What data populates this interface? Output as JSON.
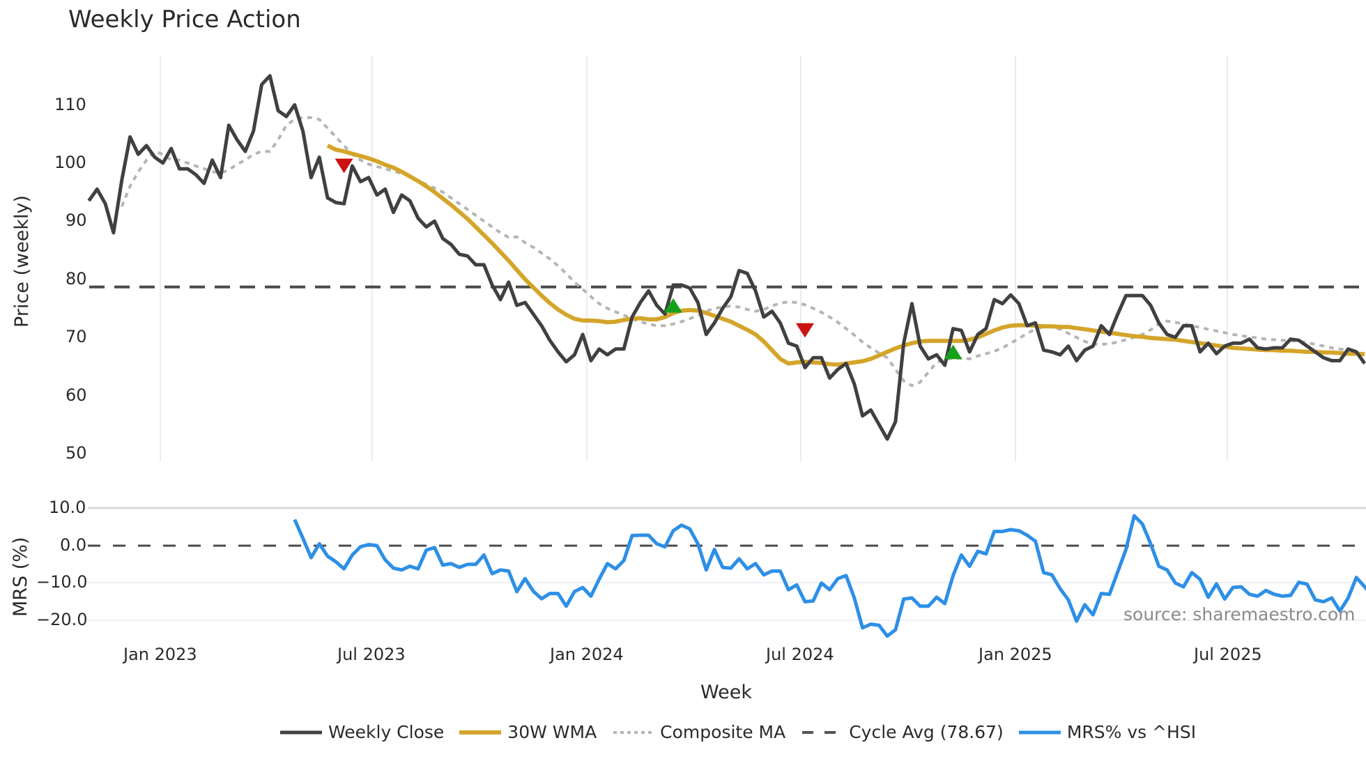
{
  "chart": {
    "title": "Weekly Price Action",
    "price_axis_label": "Price (weekly)",
    "mrs_axis_label": "MRS (%)",
    "x_axis_label": "Week",
    "source": "source: sharemaestro.com",
    "price_ticks": [
      "110",
      "100",
      "90",
      "80",
      "70",
      "60",
      "50"
    ],
    "mrs_ticks": [
      "10.0",
      "0.0",
      "−10.0",
      "−20.0"
    ],
    "x_ticks": [
      "Jan 2023",
      "Jul 2023",
      "Jan 2024",
      "Jul 2024",
      "Jan 2025",
      "Jul 2025"
    ],
    "colors": {
      "close": "#404040",
      "wma": "#d4a52a",
      "composite": "#b5b5b5",
      "cycle": "#4a4a4a",
      "mrs": "#2e8fe6",
      "sell_marker": "#cc1111",
      "buy_marker": "#15a21b",
      "grid": "#e8ecf2"
    }
  },
  "legend": {
    "close": "Weekly Close",
    "wma": "30W WMA",
    "composite": "Composite MA",
    "cycle": "Cycle Avg (78.67)",
    "mrs": "MRS% vs ^HSI"
  },
  "chart_data": {
    "type": "line",
    "title": "Weekly Price Action",
    "xlabel": "Week",
    "ylabel": "Price (weekly)",
    "ylim": [
      49,
      117
    ],
    "x_start": "Oct 2022",
    "x_end": "Oct 2025",
    "x_ticks": [
      "Jan 2023",
      "Jul 2023",
      "Jan 2024",
      "Jul 2024",
      "Jan 2025",
      "Jul 2025"
    ],
    "grid": true,
    "legend_position": "bottom",
    "series": [
      {
        "name": "Weekly Close",
        "start_index": 0,
        "values": [
          93.5,
          95.5,
          93,
          88,
          97,
          104.5,
          101.5,
          103,
          101,
          100,
          102.5,
          99,
          99,
          98,
          96.5,
          100.5,
          97.5,
          106.5,
          104,
          102,
          105.5,
          113.5,
          115,
          109,
          108,
          110,
          105.5,
          97.5,
          101,
          94,
          93.2,
          93,
          99.5,
          96.8,
          97.5,
          94.5,
          95.5,
          91.5,
          94.5,
          93.5,
          90.5,
          89,
          90,
          87,
          86,
          84.3,
          84,
          82.5,
          82.5,
          79,
          76.5,
          79.5,
          75.5,
          76,
          74,
          72,
          69.5,
          67.5,
          65.8,
          67,
          70.5,
          66,
          68,
          67,
          68,
          68,
          73.5,
          76,
          78,
          75.5,
          74,
          79,
          79,
          78.5,
          76,
          70.5,
          72.5,
          75,
          77,
          81.5,
          81,
          78,
          73.5,
          74.5,
          72.5,
          69,
          68.5,
          64.8,
          66.5,
          66.5,
          63,
          64.5,
          65.5,
          62,
          56.5,
          57.5,
          55,
          52.5,
          55.5,
          69,
          75.8,
          68.5,
          66.3,
          67,
          65.2,
          71.5,
          71.2,
          67.5,
          70.5,
          71.5,
          76.5,
          75.8,
          77.3,
          75.8,
          72,
          72.5,
          67.8,
          67.5,
          67,
          68.5,
          66,
          67.8,
          68.5,
          72,
          70.5,
          74,
          77.2,
          77.2,
          77.2,
          75.5,
          72.5,
          70.5,
          70,
          72,
          72,
          67.5,
          69,
          67.2,
          68.5,
          69,
          69,
          69.7,
          68.2,
          68,
          68.2,
          68.2,
          69.7,
          69.5,
          68.5,
          67.5,
          66.5,
          66,
          66,
          68,
          67.5,
          65.5
        ]
      },
      {
        "name": "30W WMA",
        "start_index": 29,
        "values": [
          103,
          102.3,
          102,
          101.6,
          101.2,
          100.8,
          100.3,
          99.7,
          99.2,
          98.5,
          97.7,
          96.9,
          96,
          95,
          93.9,
          92.8,
          91.6,
          90.4,
          89,
          87.6,
          86.2,
          84.7,
          83.2,
          81.6,
          80,
          78.6,
          77.2,
          75.9,
          74.8,
          73.9,
          73.2,
          72.9,
          72.9,
          72.8,
          72.6,
          72.7,
          73,
          73.2,
          73.3,
          73.1,
          73.1,
          73.5,
          74.2,
          74.6,
          74.7,
          74.6,
          74.2,
          73.7,
          73.2,
          72.7,
          72,
          71.3,
          70.5,
          69.3,
          67.8,
          66.3,
          65.5,
          65.7,
          65.8,
          65.7,
          65.6,
          65.4,
          65.3,
          65.5,
          65.7,
          65.9,
          66.3,
          66.9,
          67.5,
          68.1,
          68.6,
          69,
          69.3,
          69.4,
          69.4,
          69.4,
          69.4,
          69.4,
          69.6,
          70,
          70.6,
          71.2,
          71.7,
          72,
          72.1,
          72.1,
          72,
          71.9,
          71.9,
          71.8,
          71.8,
          71.6,
          71.4,
          71.2,
          71,
          70.8,
          70.6,
          70.4,
          70.2,
          70.1,
          69.9,
          69.8,
          69.7,
          69.6,
          69.4,
          69.2,
          69,
          68.8,
          68.6,
          68.4,
          68.2,
          68.1,
          68,
          67.9,
          67.8,
          67.8,
          67.7,
          67.7,
          67.6,
          67.5,
          67.5,
          67.4,
          67.4,
          67.3,
          67.2,
          67.2,
          67.1
        ]
      },
      {
        "name": "Composite MA",
        "start_index": 4,
        "values": [
          92.5,
          96,
          98.5,
          100.5,
          102,
          101.5,
          100.5,
          100.5,
          100,
          99.5,
          99,
          98.5,
          98.3,
          98.8,
          99.8,
          100.5,
          101.5,
          102,
          102,
          104,
          106.5,
          107.5,
          107.8,
          107.8,
          107.5,
          106,
          104.5,
          103,
          101.5,
          100.5,
          99.8,
          99.4,
          99,
          98.6,
          98.2,
          97.7,
          97,
          96.3,
          95.7,
          95,
          94,
          93,
          92,
          91,
          90,
          89,
          88,
          87.2,
          87.3,
          86.3,
          85.5,
          84.5,
          83.5,
          82.3,
          81,
          79.5,
          78.3,
          77,
          75.8,
          75,
          74.4,
          73.8,
          73.2,
          72.7,
          72.3,
          72,
          72,
          72.3,
          72.7,
          73.2,
          73.8,
          74.5,
          75,
          75.2,
          75.4,
          75.2,
          74.8,
          74.5,
          74.8,
          75.4,
          75.9,
          76.1,
          76,
          75.6,
          75,
          74.3,
          73.5,
          72.6,
          71.5,
          70.4,
          69.2,
          68.2,
          67.3,
          66.5,
          64.5,
          62.5,
          61.7,
          62.3,
          64,
          65.7,
          66.2,
          66.4,
          66.4,
          66.3,
          66.8,
          67.2,
          67.6,
          68.2,
          69,
          69.8,
          70.7,
          71.4,
          71.8,
          71.8,
          71.4,
          70.7,
          70,
          69.3,
          68.8,
          68.8,
          68.9,
          69.2,
          69.6,
          70,
          70.5,
          71.3,
          72.3,
          72.8,
          72.6,
          72.3,
          72,
          71.7,
          71.4,
          71.1,
          70.8,
          70.5,
          70.3,
          70.1,
          69.9,
          69.7,
          69.6,
          69.5,
          69.4,
          69.3,
          69.1,
          68.8,
          68.5,
          68.2,
          68,
          67.8
        ]
      },
      {
        "name": "Cycle Avg (78.67)",
        "constant": 78.67
      },
      {
        "name": "MRS% vs ^HSI",
        "axis": "MRS (%)",
        "ylim": [
          -26,
          12
        ],
        "start_index": 25,
        "values": [
          7,
          2,
          -3.2,
          0.5,
          -2.8,
          -4.3,
          -6.2,
          -2.5,
          -0.3,
          0.3,
          0,
          -3.8,
          -6,
          -6.5,
          -5.5,
          -6.2,
          -1.2,
          -0.5,
          -5.2,
          -4.8,
          -5.8,
          -5,
          -5,
          -2.5,
          -7.5,
          -6.5,
          -6.8,
          -12.3,
          -8.8,
          -12.2,
          -14.2,
          -12.8,
          -12.8,
          -16.2,
          -12.3,
          -11.2,
          -13.5,
          -9,
          -4.8,
          -6.2,
          -4,
          2.7,
          2.8,
          2.8,
          0.5,
          -0.3,
          4,
          5.5,
          4.5,
          0.5,
          -6.5,
          -1,
          -5.8,
          -6,
          -3.5,
          -6.2,
          -4.8,
          -7.8,
          -6.8,
          -6.8,
          -11.8,
          -10.5,
          -15,
          -14.8,
          -10,
          -11.8,
          -8.8,
          -8,
          -14,
          -22,
          -21,
          -21.3,
          -24.2,
          -22.5,
          -14.3,
          -14,
          -16.2,
          -16.2,
          -13.8,
          -15.5,
          -8,
          -2.5,
          -5.5,
          -1.5,
          -2.2,
          3.8,
          3.8,
          4.3,
          4,
          2.8,
          1.2,
          -7.2,
          -7.8,
          -11.5,
          -14.5,
          -20.2,
          -15.8,
          -18.5,
          -12.8,
          -13,
          -7,
          -1,
          8,
          5.8,
          0.5,
          -5.5,
          -6.5,
          -10,
          -11,
          -7.2,
          -9,
          -13.8,
          -10.2,
          -14.3,
          -11.2,
          -11,
          -13,
          -13.5,
          -12,
          -13,
          -13.5,
          -13.3,
          -9.8,
          -10.3,
          -14.5,
          -15,
          -14,
          -17.5,
          -14,
          -8.5,
          -11,
          -13.5
        ]
      }
    ],
    "markers": [
      {
        "type": "sell",
        "shape": "triangle-down",
        "index": 31,
        "price": 99.5
      },
      {
        "type": "buy",
        "shape": "triangle-up",
        "index": 71,
        "price": 75.5
      },
      {
        "type": "sell",
        "shape": "triangle-down",
        "index": 87,
        "price": 71.2
      },
      {
        "type": "buy",
        "shape": "triangle-up",
        "index": 105,
        "price": 67.5
      }
    ]
  }
}
